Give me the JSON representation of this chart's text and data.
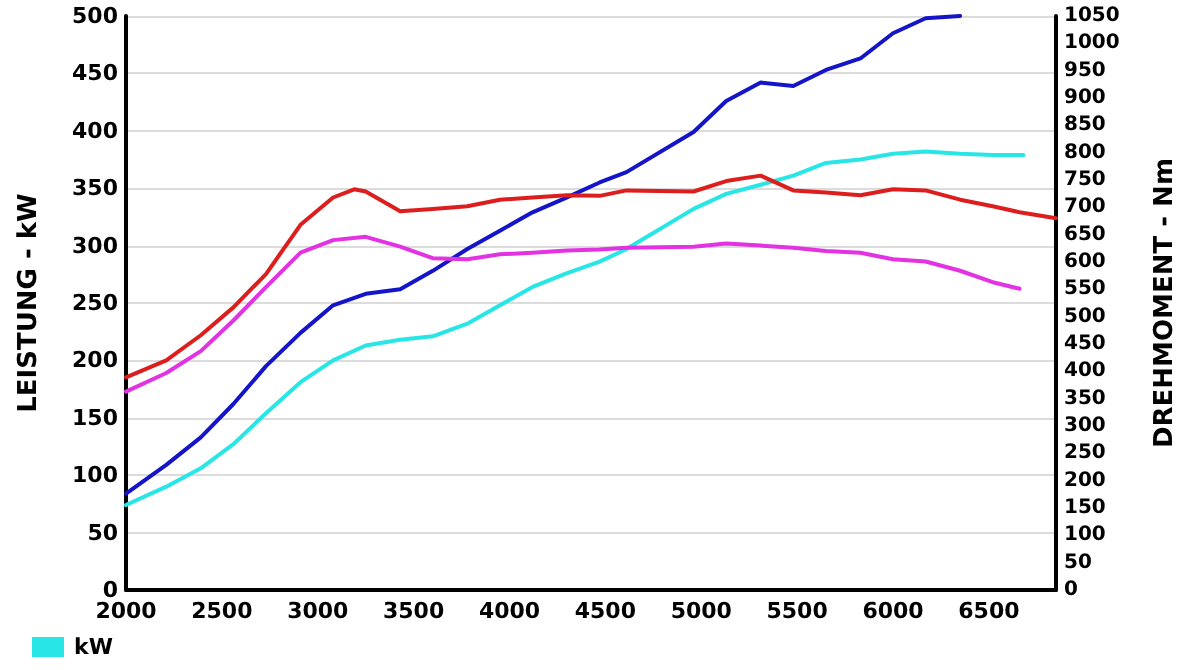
{
  "chart_data": {
    "type": "line",
    "ylabel": "LEISTUNG - kW",
    "y2label": "DREHMOMENT - Nm",
    "legend": "bottom left",
    "grid": "y",
    "marker": "none",
    "line_style": "solid",
    "xlim": [
      2000,
      6850
    ],
    "xticks": [
      2000,
      2500,
      3000,
      3500,
      4000,
      4500,
      5000,
      5500,
      6000,
      6500
    ],
    "ylim": [
      0,
      500
    ],
    "yticks": [
      0,
      50,
      100,
      150,
      200,
      250,
      300,
      350,
      400,
      450,
      500
    ],
    "y2lim": [
      0,
      1050
    ],
    "y2ticks": [
      0,
      50,
      100,
      150,
      200,
      250,
      300,
      350,
      400,
      450,
      500,
      550,
      600,
      650,
      700,
      750,
      800,
      850,
      900,
      950,
      1000,
      1050
    ],
    "series": [
      {
        "color": "#1414c8",
        "axis": "y",
        "x": [
          2000,
          2210,
          2390,
          2560,
          2730,
          2910,
          3080,
          3250,
          3430,
          3600,
          3780,
          3950,
          4120,
          4300,
          4470,
          4610,
          4960,
          5130,
          5310,
          5480,
          5650,
          5830,
          6000,
          6170,
          6350
        ],
        "values": [
          84,
          109,
          133,
          162,
          195,
          224,
          248,
          258,
          262,
          278,
          297,
          313,
          329,
          342,
          355,
          364,
          399,
          426,
          442,
          439,
          453,
          463,
          485,
          498,
          500
        ]
      },
      {
        "name": "kW",
        "color": "#28e6e6",
        "axis": "y",
        "x": [
          2000,
          2210,
          2390,
          2560,
          2730,
          2910,
          3080,
          3250,
          3430,
          3600,
          3780,
          3950,
          4120,
          4300,
          4470,
          4610,
          4960,
          5130,
          5310,
          5480,
          5650,
          5830,
          6000,
          6170,
          6350,
          6520,
          6680
        ],
        "values": [
          74,
          90,
          106,
          127,
          154,
          181,
          200,
          213,
          218,
          221,
          232,
          248,
          264,
          276,
          286,
          297,
          332,
          345,
          353,
          361,
          372,
          375,
          380,
          382,
          380,
          379,
          379
        ]
      },
      {
        "color": "#dc1e1e",
        "axis": "y2",
        "x": [
          2000,
          2210,
          2390,
          2560,
          2730,
          2910,
          3080,
          3190,
          3250,
          3430,
          3600,
          3780,
          3950,
          4120,
          4300,
          4470,
          4610,
          4960,
          5130,
          5310,
          5480,
          5650,
          5830,
          6000,
          6170,
          6350,
          6520,
          6660,
          6850
        ],
        "values": [
          389,
          420,
          466,
          517,
          578,
          668,
          718,
          733,
          729,
          693,
          697,
          702,
          714,
          718,
          722,
          721,
          731,
          729,
          748,
          758,
          731,
          727,
          722,
          733,
          731,
          714,
          702,
          691,
          680
        ]
      },
      {
        "color": "#e232e2",
        "axis": "y2",
        "x": [
          2000,
          2210,
          2390,
          2560,
          2730,
          2910,
          3080,
          3250,
          3430,
          3600,
          3780,
          3950,
          4120,
          4300,
          4470,
          4610,
          4960,
          5130,
          5310,
          5480,
          5650,
          5830,
          6000,
          6170,
          6350,
          6520,
          6660
        ],
        "values": [
          363,
          397,
          437,
          493,
          554,
          617,
          640,
          646,
          628,
          607,
          605,
          614,
          617,
          621,
          623,
          626,
          628,
          634,
          630,
          626,
          620,
          617,
          605,
          601,
          584,
          563,
          551
        ]
      }
    ]
  }
}
